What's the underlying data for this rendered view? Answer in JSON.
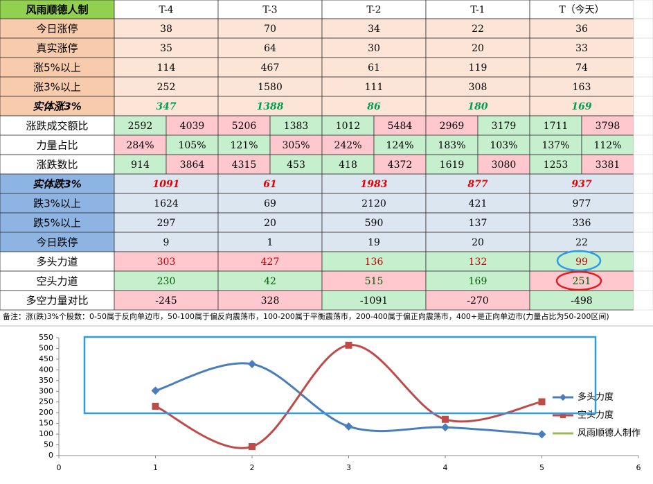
{
  "table": {
    "header": [
      "风雨顺德人制",
      "T-4",
      "T-3",
      "T-2",
      "T-1",
      "T（今天）"
    ],
    "rows": [
      {
        "label": "今日涨停",
        "label_color": "#f8cbad",
        "color": "#fce4d6",
        "values": [
          "38",
          "70",
          "34",
          "22",
          "36"
        ]
      },
      {
        "label": "真实涨停",
        "label_color": "#f8cbad",
        "color": "#fce4d6",
        "values": [
          "35",
          "64",
          "30",
          "20",
          "33"
        ]
      },
      {
        "label": "涨5%以上",
        "label_color": "#f8cbad",
        "color": "#fce4d6",
        "values": [
          "114",
          "467",
          "61",
          "119",
          "74"
        ]
      },
      {
        "label": "涨3%以上",
        "label_color": "#f8cbad",
        "color": "#fce4d6",
        "values": [
          "252",
          "1580",
          "111",
          "308",
          "163"
        ]
      },
      {
        "label": "实体涨3%",
        "label_color": "#f8cbad",
        "color": "#fce4d6",
        "italic": true,
        "text_color": "#00a050",
        "values": [
          "347",
          "1388",
          "86",
          "180",
          "169"
        ]
      },
      {
        "label": "涨跌成交额比",
        "values": [
          [
            "2592",
            "4039"
          ],
          [
            "5206",
            "1383"
          ],
          [
            "1012",
            "5484"
          ],
          [
            "2969",
            "3179"
          ],
          [
            "1711",
            "3798"
          ]
        ],
        "colors": [
          [
            "#c6efce",
            "#ffc7ce"
          ],
          [
            "#ffc7ce",
            "#c6efce"
          ],
          [
            "#c6efce",
            "#ffc7ce"
          ],
          [
            "#ffc7ce",
            "#c6efce"
          ],
          [
            "#c6efce",
            "#ffc7ce"
          ]
        ]
      },
      {
        "label": "力量占比",
        "values": [
          [
            "284%",
            "105%"
          ],
          [
            "121%",
            "305%"
          ],
          [
            "242%",
            "124%"
          ],
          [
            "183%",
            "103%"
          ],
          [
            "137%",
            "112%"
          ]
        ],
        "colors": [
          [
            "#ffc7ce",
            "#c6efce"
          ],
          [
            "#c6efce",
            "#ffc7ce"
          ],
          [
            "#ffc7ce",
            "#c6efce"
          ],
          [
            "#c6efce",
            "#c6efce"
          ],
          [
            "#c6efce",
            "#c6efce"
          ]
        ]
      },
      {
        "label": "涨跌数比",
        "values": [
          [
            "914",
            "3864"
          ],
          [
            "4315",
            "453"
          ],
          [
            "418",
            "4372"
          ],
          [
            "1619",
            "3080"
          ],
          [
            "1253",
            "3381"
          ]
        ],
        "colors": [
          [
            "#c6efce",
            "#ffc7ce"
          ],
          [
            "#ffc7ce",
            "#c6efce"
          ],
          [
            "#c6efce",
            "#ffc7ce"
          ],
          [
            "#c6efce",
            "#ffc7ce"
          ],
          [
            "#c6efce",
            "#ffc7ce"
          ]
        ]
      },
      {
        "label": "实体跌3%",
        "label_color": "#8db4e2",
        "color": "#dce6f1",
        "italic": true,
        "text_color": "#e00000",
        "values": [
          "1091",
          "61",
          "1983",
          "877",
          "937"
        ]
      },
      {
        "label": "跌3%以上",
        "label_color": "#8db4e2",
        "color": "#dce6f1",
        "values": [
          "1624",
          "69",
          "2120",
          "421",
          "977"
        ]
      },
      {
        "label": "跌5%以上",
        "label_color": "#8db4e2",
        "color": "#dce6f1",
        "values": [
          "297",
          "20",
          "590",
          "137",
          "336"
        ]
      },
      {
        "label": "今日跌停",
        "label_color": "#8db4e2",
        "color": "#dce6f1",
        "values": [
          "9",
          "1",
          "19",
          "20",
          "22"
        ]
      },
      {
        "label": "多头力道",
        "text_color": "#c00000",
        "values": [
          "303",
          "427",
          "136",
          "132",
          "99"
        ],
        "colors": [
          "#ffc7ce",
          "#ffc7ce",
          "#c6efce",
          "#c6efce",
          "#c6efce"
        ]
      },
      {
        "label": "空头力道",
        "text_color": "#006100",
        "values": [
          "230",
          "42",
          "515",
          "169",
          "251"
        ],
        "colors": [
          "#c6efce",
          "#c6efce",
          "#ffc7ce",
          "#c6efce",
          "#ffc7ce"
        ]
      },
      {
        "label": "多空力量对比",
        "values": [
          "-245",
          "328",
          "-1091",
          "-270",
          "-498"
        ],
        "colors": [
          "#ffc7ce",
          "#ffc7ce",
          "#c6efce",
          "#ffc7ce",
          "#c6efce"
        ]
      }
    ],
    "note": "备注：涨(跌)3%个股数：0-50属于反向单边市，50-100属于偏反向震荡市，100-200属于平衡震荡市，200-400属于偏正向震荡市，400+是正向单边市(力量占比为50-200区间)"
  },
  "chart_data": {
    "type": "line",
    "x": [
      1,
      2,
      3,
      4,
      5
    ],
    "series": [
      {
        "name": "多头力度",
        "color": "#4a7ebb",
        "marker": "diamond",
        "values": [
          303,
          427,
          136,
          132,
          99
        ]
      },
      {
        "name": "空头力度",
        "color": "#be4b48",
        "marker": "square",
        "values": [
          230,
          42,
          515,
          169,
          251
        ]
      },
      {
        "name": "风雨顺德人制作",
        "color": "#9bbb59",
        "values": [
          null,
          null,
          null,
          null,
          null
        ]
      }
    ],
    "xlim": [
      0,
      6
    ],
    "xticks": [
      0,
      1,
      2,
      3,
      4,
      5,
      6
    ],
    "ylim": [
      0,
      550
    ],
    "yticks": [
      0,
      50,
      100,
      150,
      200,
      250,
      300,
      350,
      400,
      450,
      500,
      550
    ],
    "smooth": true,
    "legend": "right"
  }
}
